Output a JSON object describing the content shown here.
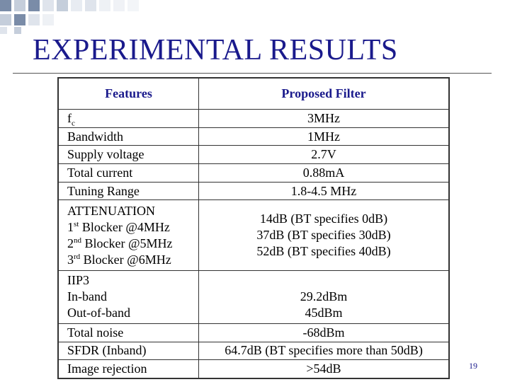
{
  "slide": {
    "title": "EXPERIMENTAL RESULTS",
    "page_number": "19"
  },
  "table": {
    "headers": [
      "Features",
      "Proposed Filter"
    ],
    "rows": [
      {
        "feature": [
          "f"
        ],
        "feature_sub": "c",
        "value": [
          "3MHz"
        ]
      },
      {
        "feature": [
          "Bandwidth"
        ],
        "value": [
          "1MHz"
        ]
      },
      {
        "feature": [
          "Supply voltage"
        ],
        "value": [
          "2.7V"
        ]
      },
      {
        "feature": [
          "Total current"
        ],
        "value": [
          "0.88mA"
        ]
      },
      {
        "feature": [
          "Tuning Range"
        ],
        "value": [
          "1.8-4.5 MHz"
        ]
      },
      {
        "feature": [
          "ATTENUATION",
          "Blocker @4MHz",
          "Blocker @5MHz",
          "Blocker @6MHz"
        ],
        "feature_prefix": [
          "",
          "1",
          "2",
          "3"
        ],
        "feature_sup": [
          "",
          "st",
          "nd",
          "rd"
        ],
        "value": [
          "14dB (BT specifies 0dB)",
          "37dB (BT specifies 30dB)",
          "52dB (BT specifies 40dB)"
        ]
      },
      {
        "feature": [
          "IIP3",
          "In-band",
          "Out-of-band"
        ],
        "value": [
          "29.2dBm",
          "45dBm"
        ]
      },
      {
        "feature": [
          "Total noise"
        ],
        "value": [
          "-68dBm"
        ]
      },
      {
        "feature": [
          "SFDR (Inband)"
        ],
        "value": [
          "64.7dB (BT specifies more than 50dB)"
        ]
      },
      {
        "feature": [
          "Image rejection"
        ],
        "value": [
          ">54dB"
        ]
      }
    ]
  },
  "colors": {
    "title": "#1a1a8c",
    "header_text": "#1a1a8c",
    "deco_dark": "#7a8ca8",
    "deco_light": "#c5cedb"
  }
}
